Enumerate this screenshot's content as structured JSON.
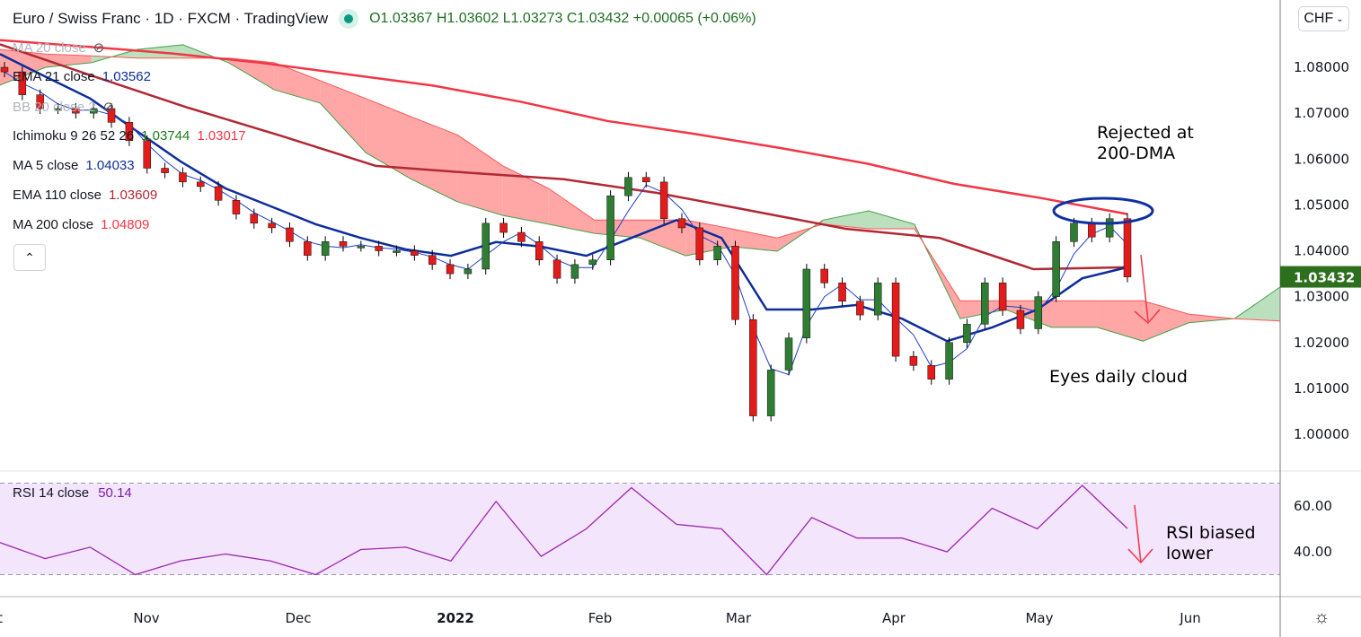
{
  "header": {
    "title": "Euro / Swiss Franc · 1D · FXCM · TradingView",
    "open": "O1.03367",
    "high": "H1.03602",
    "low": "L1.03273",
    "close": "C1.03432",
    "change": "+0.00065 (+0.06%)",
    "market_status_color": "#089981"
  },
  "currency_selector": {
    "label": "CHF",
    "icon": "chevron-down-icon"
  },
  "legend": [
    {
      "label": "MA 20 close",
      "value": "",
      "hidden": true,
      "color": "#b2b5be"
    },
    {
      "label": "EMA 21 close",
      "value": "1.03562",
      "color": "#0d2d9b"
    },
    {
      "label": "BB 20 close 2",
      "value": "",
      "hidden": true,
      "color": "#b2b5be"
    },
    {
      "label": "Ichimoku 9 26 52 26",
      "value": "1.03744",
      "value2": "1.03017",
      "color": "#1e7a1e",
      "color2": "#f23645"
    },
    {
      "label": "MA 5 close",
      "value": "1.04033",
      "color": "#0d2d9b"
    },
    {
      "label": "EMA 110 close",
      "value": "1.03609",
      "color": "#b22833"
    },
    {
      "label": "MA 200 close",
      "value": "1.04809",
      "color": "#f23645"
    }
  ],
  "rsi_legend": {
    "label": "RSI 14 close",
    "value": "50.14",
    "color": "#7b1fa2"
  },
  "annotations": {
    "rejected": "Rejected at 200-DMA",
    "rejected_l1": "Rejected at",
    "rejected_l2": "200-DMA",
    "cloud": "Eyes daily cloud",
    "rsi_l1": "RSI biased",
    "rsi_l2": "lower"
  },
  "chart_data": {
    "type": "candlestick",
    "price_axis": {
      "ticks": [
        "1.08000",
        "1.07000",
        "1.06000",
        "1.05000",
        "1.04000",
        "1.03000",
        "1.02000",
        "1.01000",
        "1.00000"
      ],
      "range": [
        0.9915,
        1.0947
      ],
      "last_price": "1.03432",
      "last_price_color": "#2e6f1e"
    },
    "time_axis": {
      "ticks": [
        "Oct",
        "Nov",
        "Dec",
        "2022",
        "Feb",
        "Mar",
        "Apr",
        "May",
        "Jun"
      ]
    },
    "closes": [
      1.079,
      1.074,
      1.071,
      1.071,
      1.07,
      1.071,
      1.068,
      1.064,
      1.058,
      1.057,
      1.055,
      1.054,
      1.051,
      1.048,
      1.046,
      1.045,
      1.042,
      1.039,
      1.042,
      1.041,
      1.041,
      1.04,
      1.04,
      1.039,
      1.037,
      1.035,
      1.036,
      1.046,
      1.044,
      1.042,
      1.038,
      1.034,
      1.037,
      1.038,
      1.052,
      1.056,
      1.055,
      1.047,
      1.045,
      1.038,
      1.041,
      1.025,
      1.004,
      1.014,
      1.021,
      1.036,
      1.033,
      1.029,
      1.026,
      1.033,
      1.017,
      1.015,
      1.012,
      1.02,
      1.024,
      1.033,
      1.027,
      1.023,
      1.03,
      1.042,
      1.046,
      1.043,
      1.047,
      1.0343
    ],
    "ma200": [
      1.0859,
      1.0845,
      1.083,
      1.081,
      1.0785,
      1.076,
      1.0725,
      1.0683,
      1.0655,
      1.0624,
      1.059,
      1.0546,
      1.0515,
      1.048
    ],
    "ema110": [
      1.085,
      1.078,
      1.0712,
      1.065,
      1.0585,
      1.057,
      1.0556,
      1.0526,
      1.0487,
      1.0448,
      1.0428,
      1.036,
      1.0364
    ],
    "ema21": [
      1.0829,
      1.078,
      1.0732,
      1.0663,
      1.0595,
      1.0536,
      1.0497,
      1.0458,
      1.0428,
      1.0403,
      1.0389,
      1.0419,
      1.0409,
      1.0389,
      1.0428,
      1.0467,
      1.0428,
      1.0272,
      1.0272,
      1.0282,
      1.0252,
      1.0203,
      1.0233,
      1.0272,
      1.034,
      1.0364
    ],
    "ichimoku_span_a": [
      1.0761,
      1.08,
      1.081,
      1.0839,
      1.0849,
      1.081,
      1.0751,
      1.0722,
      1.0614,
      1.0556,
      1.0507,
      1.0477,
      1.0458,
      1.0438,
      1.0428,
      1.0389,
      1.0409,
      1.0399,
      1.0467,
      1.0487,
      1.0458,
      1.0252,
      1.0272,
      1.0233,
      1.0233,
      1.0203,
      1.0243,
      1.0252,
      1.0321
    ],
    "ichimoku_span_b": [
      1.0839,
      1.0829,
      1.0825,
      1.082,
      1.082,
      1.082,
      1.081,
      1.0771,
      1.0732,
      1.0692,
      1.0653,
      1.0585,
      1.0536,
      1.0467,
      1.0467,
      1.0467,
      1.0448,
      1.0428,
      1.0458,
      1.0448,
      1.0448,
      1.0291,
      1.0291,
      1.0291,
      1.0291,
      1.0291,
      1.0262,
      1.0252,
      1.0247
    ],
    "rsi": {
      "values": [
        44,
        37,
        42,
        30,
        36,
        39,
        36,
        30,
        41,
        42,
        36,
        62,
        38,
        50,
        68,
        52,
        50,
        30,
        55,
        46,
        46,
        40,
        59,
        50,
        69,
        50.14
      ],
      "ticks": [
        "60.00",
        "40.00"
      ],
      "bands": [
        30,
        70
      ],
      "range": [
        20,
        80
      ]
    },
    "colors": {
      "up": "#2e7d32",
      "down": "#e31b1b",
      "cloud_bull": "#a5d6a7",
      "cloud_bear": "#ff8a8a",
      "rsi_band": "#f3e5fc"
    }
  }
}
